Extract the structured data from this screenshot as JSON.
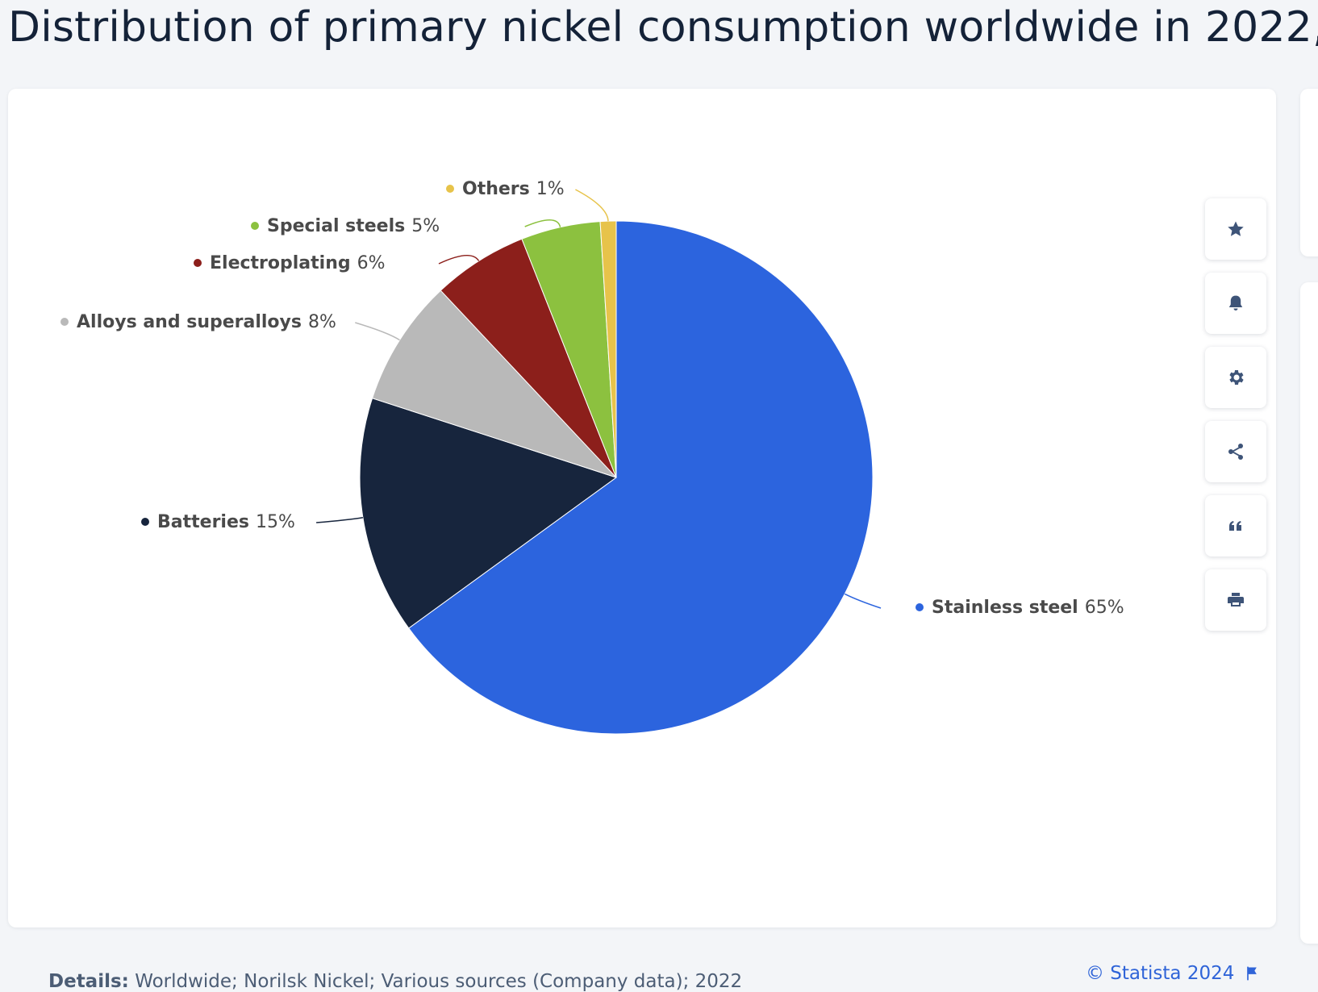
{
  "page": {
    "title": "Distribution of primary nickel consumption worldwide in 2022,"
  },
  "footer": {
    "details_label": "Details:",
    "details_text": "Worldwide; Norilsk Nickel; Various sources (Company data); 2022",
    "credit": "© Statista 2024"
  },
  "toolbar": {
    "items": [
      {
        "name": "favorite",
        "icon": "star-icon"
      },
      {
        "name": "notification",
        "icon": "bell-icon"
      },
      {
        "name": "settings",
        "icon": "gear-icon"
      },
      {
        "name": "share",
        "icon": "share-icon"
      },
      {
        "name": "cite",
        "icon": "quote-icon"
      },
      {
        "name": "print",
        "icon": "printer-icon"
      }
    ]
  },
  "chart_data": {
    "type": "pie",
    "title": "Distribution of primary nickel consumption worldwide in 2022,",
    "start_angle_deg": 0,
    "direction": "clockwise",
    "slices": [
      {
        "label": "Stainless steel",
        "value": 65,
        "display": "65%",
        "color": "#2c64de"
      },
      {
        "label": "Batteries",
        "value": 15,
        "display": "15%",
        "color": "#17253d"
      },
      {
        "label": "Alloys and superalloys",
        "value": 8,
        "display": "8%",
        "color": "#b9b9b9"
      },
      {
        "label": "Electroplating",
        "value": 6,
        "display": "6%",
        "color": "#8c1f1b"
      },
      {
        "label": "Special steels",
        "value": 5,
        "display": "5%",
        "color": "#8cc13f"
      },
      {
        "label": "Others",
        "value": 1,
        "display": "1%",
        "color": "#e7c34a"
      }
    ],
    "labels": "outside with connector lines",
    "legend": "none"
  }
}
